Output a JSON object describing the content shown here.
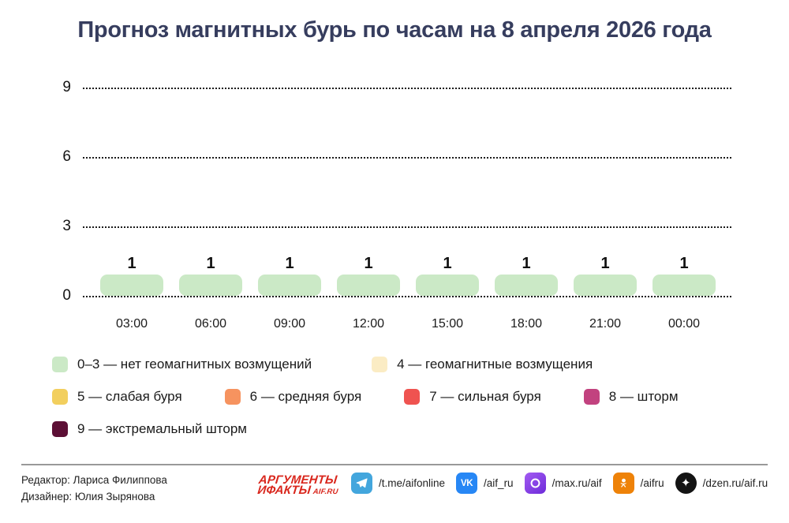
{
  "title": "Прогноз магнитных бурь по часам на 8 апреля 2026 года",
  "chart_data": {
    "type": "bar",
    "title": "Прогноз магнитных бурь по часам на 8 апреля 2026 года",
    "categories": [
      "03:00",
      "06:00",
      "09:00",
      "12:00",
      "15:00",
      "18:00",
      "21:00",
      "00:00"
    ],
    "values": [
      1,
      1,
      1,
      1,
      1,
      1,
      1,
      1
    ],
    "xlabel": "",
    "ylabel": "",
    "ylim": [
      0,
      9
    ],
    "yticks": [
      9,
      6,
      3,
      0
    ],
    "grid": "horizontal-dotted",
    "legend_position": "bottom",
    "bar_color": "#cbe9c6",
    "value_label_color": "#111111"
  },
  "legend_rows": [
    [
      {
        "label": "0–3 — нет геомагнитных возмущений",
        "color": "#cbe9c6"
      },
      {
        "label": "4 — геомагнитные возмущения",
        "color": "#fbecc4"
      }
    ],
    [
      {
        "label": "5 — слабая буря",
        "color": "#f2cf5e"
      },
      {
        "label": "6 — средняя буря",
        "color": "#f6935f"
      },
      {
        "label": "7 — сильная буря",
        "color": "#ef5350"
      },
      {
        "label": "8 — шторм",
        "color": "#c2427f"
      }
    ],
    [
      {
        "label": "9 — экстремальный шторм",
        "color": "#5c0f35"
      }
    ]
  ],
  "footer": {
    "editor": "Редактор: Лариса Филиппова",
    "designer": "Дизайнер: Юлия Зырянова",
    "logo": {
      "line1": "АРГУМЕНТЫ",
      "line2": "ИФАКТЫ",
      "suffix": "AIF.RU",
      "color": "#d9261c"
    },
    "socials": [
      {
        "icon": "telegram-icon",
        "handle": "/t.me/aifonline",
        "color": "#43a6dd"
      },
      {
        "icon": "vk-icon",
        "handle": "/aif_ru",
        "color": "#2787f5"
      },
      {
        "icon": "max-icon",
        "handle": "/max.ru/aif",
        "color": "#8b3df0"
      },
      {
        "icon": "ok-icon",
        "handle": "/aifru",
        "color": "#ee8208"
      },
      {
        "icon": "dzen-icon",
        "handle": "/dzen.ru/aif.ru",
        "color": "#141414"
      }
    ]
  },
  "colors": {
    "title_text": "#363d5e",
    "grid": "#1c1c1c",
    "footer_divider": "#999999"
  }
}
